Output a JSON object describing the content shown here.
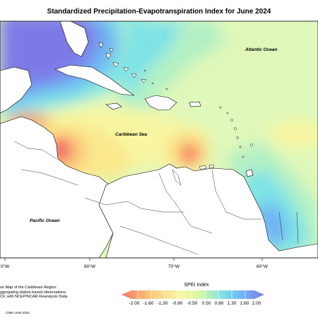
{
  "title": "Standardized Precipitation-Evapotranspiration Index for June 2024",
  "region_labels": {
    "atlantic": "Atlantic Ocean",
    "caribbean": "Caribbean Sea",
    "pacific": "Pacific Ocean"
  },
  "lon_labels": [
    "0°W",
    "80°W",
    "70°W",
    "60°W"
  ],
  "legend": {
    "title": "SPEI Index",
    "labels": [
      "-2.00",
      "-1.60",
      "-1.30",
      "-0.80",
      "-0.50",
      "0.50",
      "0.80",
      "1.30",
      "1.60",
      "2.00"
    ],
    "colors": [
      "#f2766a",
      "#f79d6e",
      "#fbc77a",
      "#fae88c",
      "#f8f6a2",
      "#d8f7a4",
      "#b4f0c4",
      "#7fe3e6",
      "#6fb3f4",
      "#7d7ae8"
    ]
  },
  "footer": {
    "lines": [
      "on Map of the Caribbean Region",
      "ggregating station based observations,",
      "CF, with NCEP/NCAR Reanalysis Data."
    ],
    "credit": "CIMH June 2024"
  },
  "colors": {
    "ocean_base": "#e0f8ba",
    "land": "#ffffff",
    "outline": "#000000"
  }
}
